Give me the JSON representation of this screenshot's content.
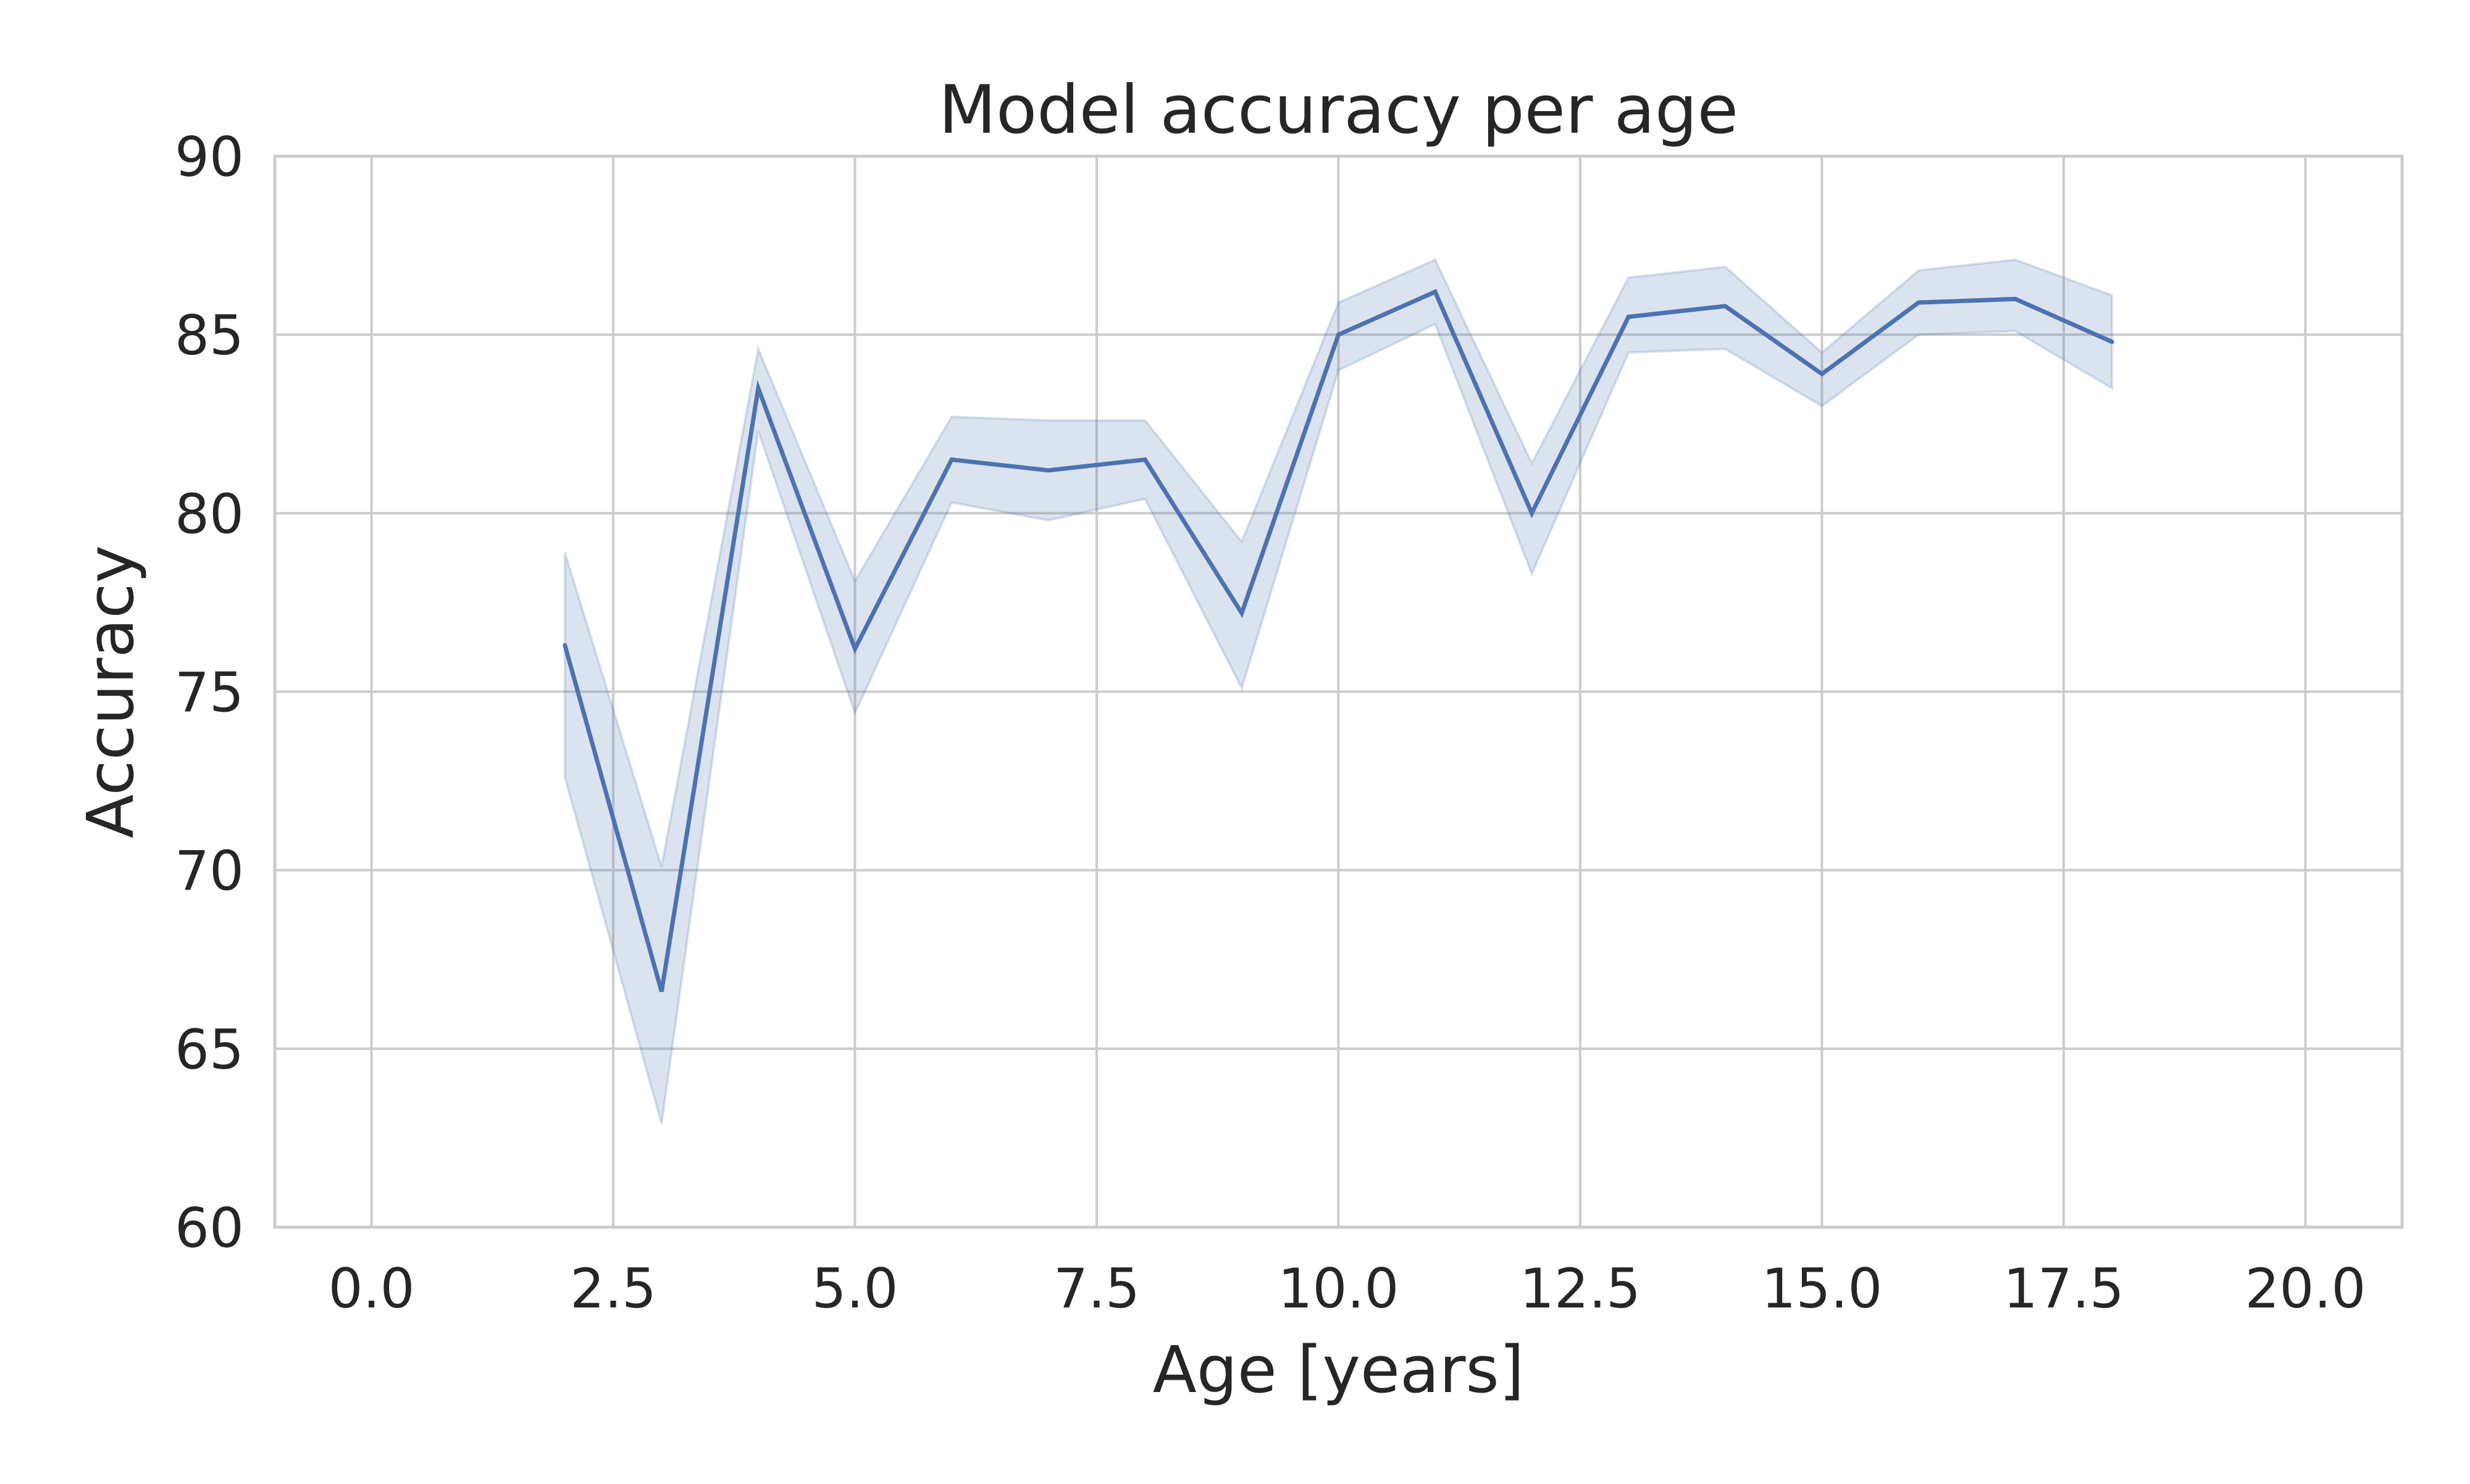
{
  "chart_data": {
    "type": "line",
    "title": "Model accuracy per age",
    "xlabel": "Age [years]",
    "ylabel": "Accuracy",
    "xlim": [
      -1,
      21
    ],
    "ylim": [
      60,
      90
    ],
    "xticks": [
      0,
      2.5,
      5,
      7.5,
      10,
      12.5,
      15,
      17.5,
      20
    ],
    "xtick_labels": [
      "0.0",
      "2.5",
      "5.0",
      "7.5",
      "10.0",
      "12.5",
      "15.0",
      "17.5",
      "20.0"
    ],
    "yticks": [
      60,
      65,
      70,
      75,
      80,
      85,
      90
    ],
    "ytick_labels": [
      "60",
      "65",
      "70",
      "75",
      "80",
      "85",
      "90"
    ],
    "grid": true,
    "line_color": "#4c72b0",
    "band_color": "#4c72b0",
    "series": [
      {
        "x": [
          2,
          3,
          4,
          5,
          6,
          7,
          8,
          9,
          10,
          11,
          12,
          13,
          14,
          15,
          16,
          17,
          18
        ],
        "y": [
          76.3,
          66.6,
          83.5,
          76.2,
          81.5,
          81.2,
          81.5,
          77.2,
          85.0,
          86.2,
          80.0,
          85.5,
          85.8,
          83.9,
          85.9,
          86.0,
          84.8
        ],
        "lower": [
          72.6,
          62.9,
          82.3,
          74.4,
          80.3,
          79.8,
          80.4,
          75.1,
          84.0,
          85.3,
          78.3,
          84.5,
          84.6,
          83.0,
          85.0,
          85.1,
          83.5
        ],
        "upper": [
          78.9,
          70.1,
          84.6,
          78.1,
          82.7,
          82.6,
          82.6,
          79.2,
          85.9,
          87.1,
          81.4,
          86.6,
          86.9,
          84.5,
          86.8,
          87.1,
          86.1
        ]
      }
    ]
  }
}
